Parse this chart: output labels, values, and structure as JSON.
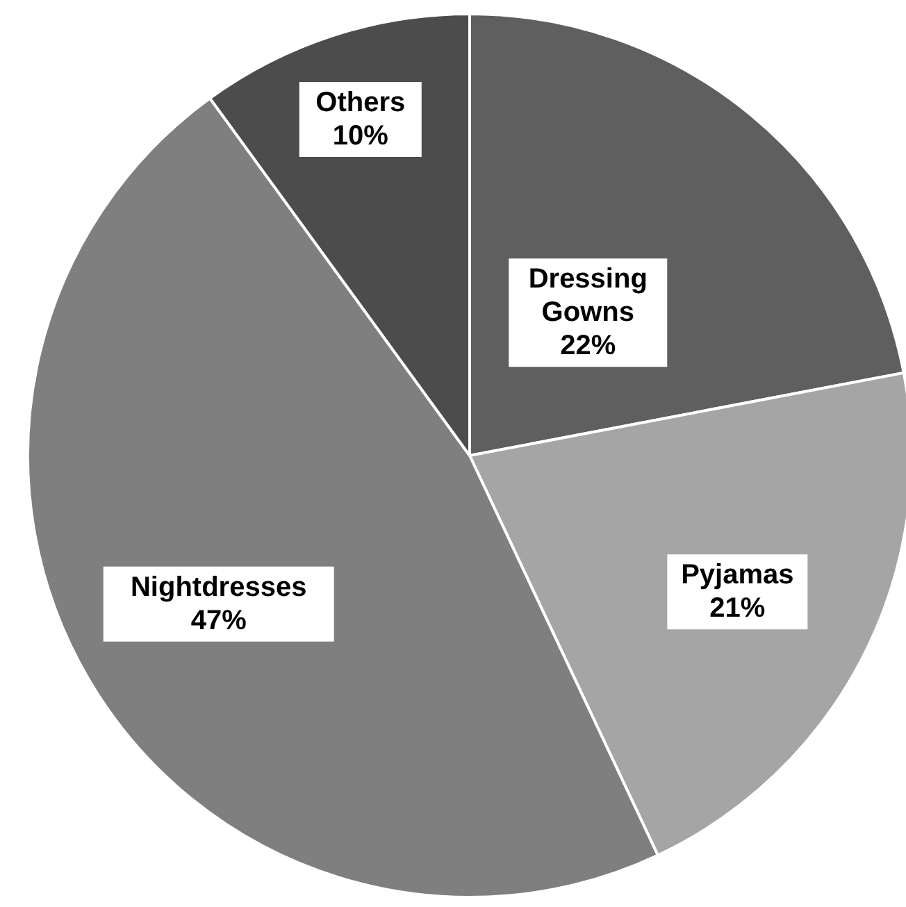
{
  "chart_data": {
    "type": "pie",
    "categories": [
      "Dressing Gowns",
      "Pyjamas",
      "Nightdresses",
      "Others"
    ],
    "values": [
      22,
      21,
      47,
      10
    ],
    "value_labels": [
      "22%",
      "21%",
      "47%",
      "10%"
    ],
    "colors": [
      "#5f5f5f",
      "#a5a5a5",
      "#7f7f7f",
      "#4c4c4c"
    ]
  }
}
